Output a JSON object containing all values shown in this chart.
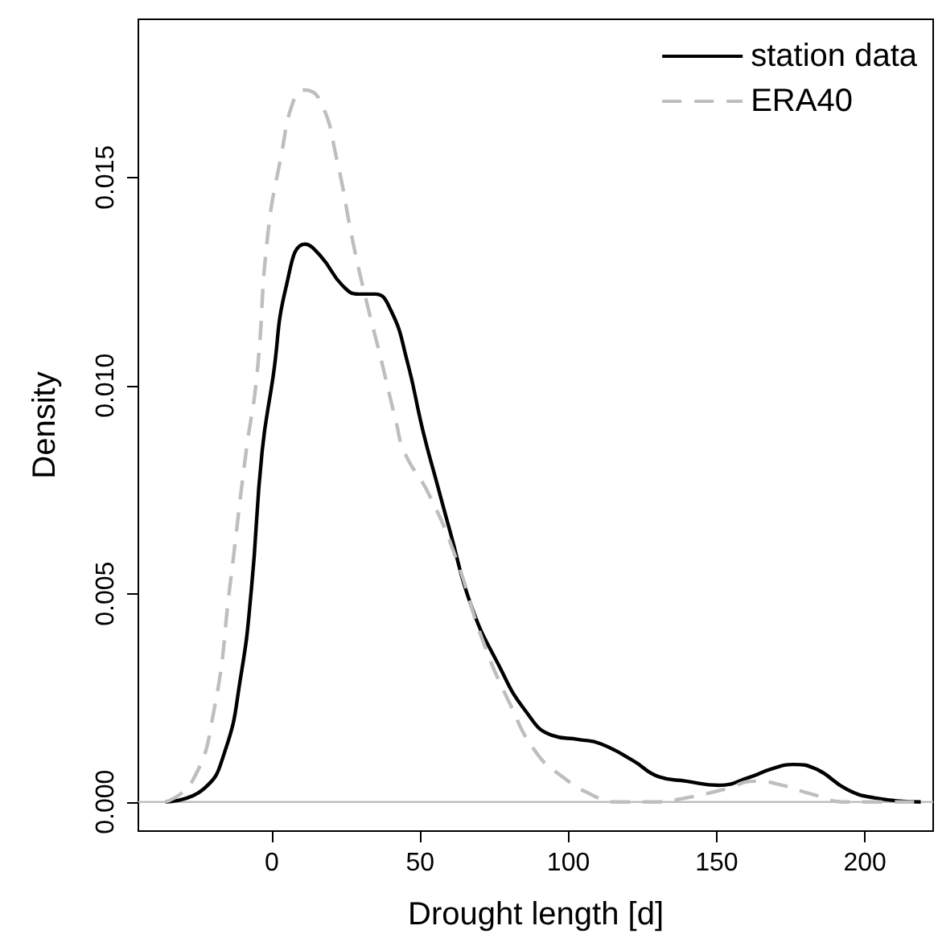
{
  "chart_data": {
    "type": "line",
    "xlabel": "Drought length [d]",
    "ylabel": "Density",
    "xlim": [
      -45,
      223
    ],
    "xticks": [
      0,
      50,
      100,
      150,
      200
    ],
    "ylim": [
      -0.0007,
      0.0188
    ],
    "yticks": [
      {
        "value": 0,
        "label": "0.000"
      },
      {
        "value": 0.005,
        "label": "0.005"
      },
      {
        "value": 0.01,
        "label": "0.010"
      },
      {
        "value": 0.015,
        "label": "0.015"
      }
    ],
    "grid": false,
    "legend": "top right",
    "marker": "none",
    "ref_lines": [
      {
        "axis": "y",
        "value": 0,
        "label": null,
        "color": "#bebebe"
      }
    ],
    "series": [
      {
        "name": "station data",
        "color": "#000000",
        "line_style": "solid",
        "x": [
          -35.8,
          -23.2,
          -15.9,
          -10.5,
          -6.9,
          -3.3,
          0.4,
          4.9,
          11.2,
          16.6,
          23.9,
          29.3,
          34.8,
          40.2,
          45.6,
          51.0,
          55.5,
          60.1,
          67.3,
          76.4,
          85.4,
          94.5,
          103.5,
          110.8,
          121.6,
          130.7,
          139.7,
          150.6,
          161.4,
          168.7,
          175.9,
          183.2,
          194.0,
          203.1,
          218.8
        ],
        "values": [
          0,
          0.0003,
          0.0012,
          0.003,
          0.0051,
          0.0084,
          0.0102,
          0.0124,
          0.0134,
          0.0131,
          0.0124,
          0.0122,
          0.0122,
          0.0118,
          0.0106,
          0.0089,
          0.0077,
          0.0065,
          0.0047,
          0.0033,
          0.0022,
          0.0016,
          0.0015,
          0.0014,
          0.001,
          0.0006,
          0.0005,
          0.0004,
          0.0006,
          0.0008,
          0.0009,
          0.0008,
          0.0003,
          0.0001,
          0
        ]
      },
      {
        "name": "ERA40",
        "color": "#bebebe",
        "line_style": "dashed",
        "x": [
          -35.8,
          -26.8,
          -19.5,
          -14.1,
          -8.7,
          -5.1,
          -1.4,
          3.1,
          7.6,
          11.2,
          16.6,
          22.0,
          27.5,
          32.0,
          36.6,
          42.0,
          44.7,
          52.9,
          61.9,
          71.0,
          80.0,
          89.0,
          98.1,
          107.1,
          116.2,
          128.9,
          139.7,
          152.4,
          163.2,
          172.3,
          181.4,
          194,
          203,
          218.8
        ],
        "values": [
          0,
          0.0005,
          0.0022,
          0.0052,
          0.0084,
          0.0102,
          0.0136,
          0.0155,
          0.0169,
          0.0171,
          0.0168,
          0.0154,
          0.0134,
          0.012,
          0.0107,
          0.0091,
          0.0084,
          0.0074,
          0.0059,
          0.0039,
          0.0024,
          0.0012,
          0.0006,
          0.0002,
          0,
          0,
          0.0001,
          0.0003,
          0.0005,
          0.0004,
          0.0002,
          0,
          0,
          0
        ]
      }
    ]
  }
}
